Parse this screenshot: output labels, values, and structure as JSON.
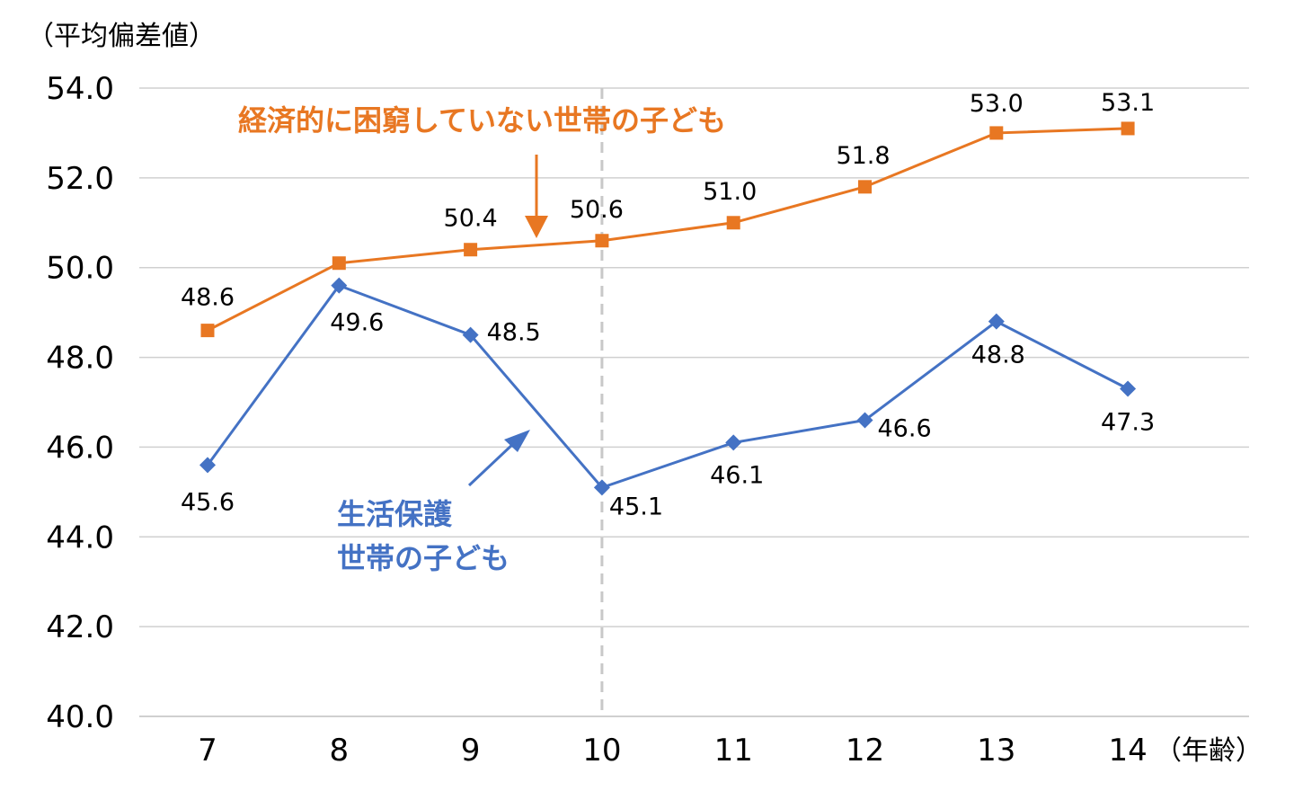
{
  "chart_data": {
    "type": "line",
    "ylabel": "（平均偏差値）",
    "xunit": "（年齢）",
    "ylim": [
      40,
      54
    ],
    "yticks": [
      "40.0",
      "42.0",
      "44.0",
      "46.0",
      "48.0",
      "50.0",
      "52.0",
      "54.0"
    ],
    "categories": [
      "7",
      "8",
      "9",
      "10",
      "11",
      "12",
      "13",
      "14"
    ],
    "grid": true,
    "reference_line_x": "10",
    "series": [
      {
        "name": "経済的に困窮していない世帯の子ども",
        "color": "#E87722",
        "marker": "square",
        "values": [
          48.6,
          50.1,
          50.4,
          50.6,
          51.0,
          51.8,
          53.0,
          53.1
        ],
        "labels": [
          "48.6",
          "",
          "50.4",
          "50.6",
          "51.0",
          "51.8",
          "53.0",
          "53.1"
        ]
      },
      {
        "name_lines": [
          "生活保護",
          "世帯の子ども"
        ],
        "color": "#4472C4",
        "marker": "diamond",
        "values": [
          45.6,
          49.6,
          48.5,
          45.1,
          46.1,
          46.6,
          48.8,
          47.3
        ],
        "labels": [
          "45.6",
          "49.6",
          "48.5",
          "45.1",
          "46.1",
          "46.6",
          "48.8",
          "47.3"
        ]
      }
    ]
  }
}
